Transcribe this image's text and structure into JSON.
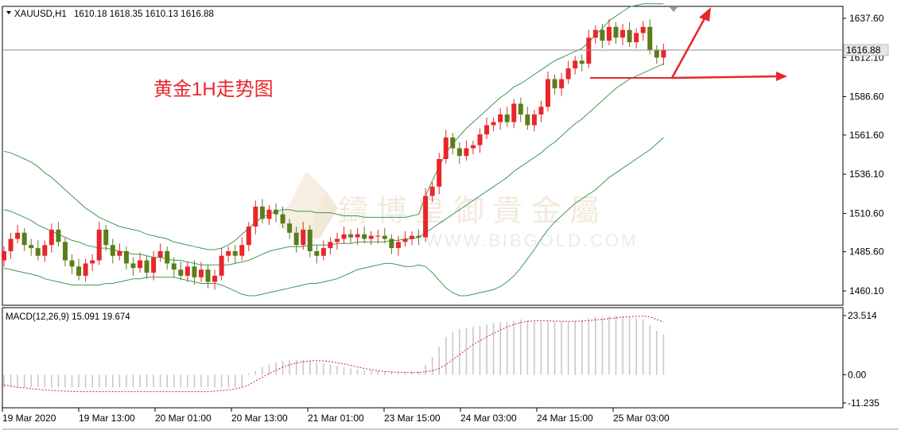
{
  "header": {
    "symbol": "XAUUSD,H1",
    "ohlc": "1610.18 1618.35 1610.13 1616.88"
  },
  "annotation": {
    "title": "黄金1H走势图"
  },
  "watermark": {
    "cn": "鑄 博 皇 御 貴 金 屬",
    "en": "WWW.BIBGOLD.COM"
  },
  "colors": {
    "bull": "#e8262a",
    "bear": "#5a7d1a",
    "band": "#3f9a55",
    "arrow": "#e8262a",
    "macd_signal": "#d0262a",
    "histogram": "#c8c8c8",
    "price_label_bg": "#e6e6e6"
  },
  "chart_data": [
    {
      "type": "candlestick",
      "symbol": "XAUUSD,H1",
      "current_price_label": "1616.88",
      "y_ticks": [
        "1637.60",
        "1612.10",
        "1586.60",
        "1561.60",
        "1536.10",
        "1510.60",
        "1485.60",
        "1460.10"
      ],
      "ylim": [
        1450,
        1648
      ],
      "x_ticks": [
        "19 Mar 2020",
        "19 Mar 13:00",
        "20 Mar 01:00",
        "20 Mar 13:00",
        "21 Mar 01:00",
        "23 Mar 15:00",
        "24 Mar 03:00",
        "24 Mar 15:00",
        "25 Mar 03:00"
      ],
      "closes": [
        1486,
        1494,
        1498,
        1490,
        1488,
        1483,
        1490,
        1500,
        1492,
        1480,
        1476,
        1470,
        1478,
        1480,
        1500,
        1490,
        1483,
        1486,
        1478,
        1475,
        1480,
        1472,
        1482,
        1486,
        1478,
        1474,
        1470,
        1476,
        1469,
        1474,
        1466,
        1470,
        1483,
        1486,
        1483,
        1490,
        1502,
        1515,
        1507,
        1513,
        1510,
        1504,
        1498,
        1490,
        1500,
        1486,
        1483,
        1488,
        1492,
        1494,
        1497,
        1495,
        1497,
        1494,
        1496,
        1496,
        1494,
        1488,
        1492,
        1494,
        1496,
        1495,
        1522,
        1528,
        1546,
        1560,
        1553,
        1548,
        1553,
        1555,
        1562,
        1568,
        1570,
        1575,
        1570,
        1582,
        1575,
        1568,
        1575,
        1580,
        1598,
        1592,
        1598,
        1605,
        1610,
        1608,
        1625,
        1630,
        1623,
        1632,
        1625,
        1630,
        1622,
        1628,
        1632,
        1617,
        1612,
        1617
      ],
      "bollinger_upper": [
        1551,
        1550,
        1548,
        1546,
        1544,
        1541,
        1537,
        1534,
        1530,
        1526,
        1522,
        1518,
        1514,
        1511,
        1508,
        1506,
        1504,
        1502,
        1501,
        1500,
        1499,
        1497,
        1496,
        1495,
        1494,
        1492,
        1491,
        1490,
        1489,
        1488,
        1487,
        1487,
        1488,
        1490,
        1493,
        1497,
        1501,
        1505,
        1508,
        1510,
        1512,
        1513,
        1513,
        1512,
        1512,
        1512,
        1511,
        1511,
        1511,
        1510,
        1509,
        1509,
        1509,
        1508,
        1508,
        1508,
        1508,
        1508,
        1508,
        1508,
        1509,
        1510,
        1522,
        1532,
        1541,
        1550,
        1556,
        1561,
        1566,
        1570,
        1574,
        1578,
        1582,
        1586,
        1589,
        1593,
        1595,
        1598,
        1601,
        1604,
        1607,
        1610,
        1612,
        1614,
        1616,
        1618,
        1622,
        1627,
        1631,
        1636,
        1639,
        1642,
        1645,
        1646,
        1647,
        1647,
        1647,
        1647
      ],
      "bollinger_middle": [
        1513,
        1512,
        1510,
        1508,
        1506,
        1503,
        1501,
        1499,
        1497,
        1495,
        1493,
        1492,
        1490,
        1489,
        1488,
        1488,
        1487,
        1486,
        1485,
        1484,
        1484,
        1483,
        1482,
        1482,
        1481,
        1480,
        1480,
        1479,
        1478,
        1477,
        1477,
        1477,
        1477,
        1477,
        1478,
        1479,
        1480,
        1482,
        1484,
        1486,
        1487,
        1488,
        1489,
        1489,
        1489,
        1490,
        1490,
        1490,
        1490,
        1491,
        1491,
        1491,
        1492,
        1492,
        1492,
        1492,
        1492,
        1493,
        1493,
        1494,
        1494,
        1495,
        1498,
        1501,
        1504,
        1507,
        1510,
        1513,
        1516,
        1519,
        1522,
        1525,
        1528,
        1531,
        1534,
        1538,
        1541,
        1544,
        1547,
        1550,
        1554,
        1557,
        1561,
        1565,
        1569,
        1572,
        1576,
        1580,
        1584,
        1588,
        1592,
        1595,
        1598,
        1600,
        1602,
        1604,
        1606,
        1608
      ],
      "bollinger_lower": [
        1475,
        1474,
        1473,
        1472,
        1471,
        1470,
        1468,
        1467,
        1466,
        1465,
        1464,
        1464,
        1464,
        1464,
        1464,
        1465,
        1465,
        1466,
        1467,
        1468,
        1468,
        1469,
        1469,
        1469,
        1469,
        1469,
        1468,
        1467,
        1466,
        1465,
        1465,
        1465,
        1464,
        1462,
        1460,
        1458,
        1457,
        1457,
        1458,
        1459,
        1460,
        1461,
        1462,
        1463,
        1464,
        1465,
        1465,
        1466,
        1467,
        1468,
        1470,
        1472,
        1474,
        1475,
        1476,
        1477,
        1478,
        1478,
        1477,
        1476,
        1476,
        1477,
        1476,
        1472,
        1467,
        1462,
        1459,
        1457,
        1457,
        1458,
        1459,
        1460,
        1461,
        1463,
        1466,
        1470,
        1475,
        1481,
        1487,
        1494,
        1500,
        1505,
        1509,
        1513,
        1517,
        1520,
        1523,
        1526,
        1530,
        1534,
        1537,
        1540,
        1543,
        1546,
        1549,
        1552,
        1556,
        1560
      ]
    },
    {
      "type": "macd",
      "label": "MACD(12,26,9) 15.091 19.674",
      "y_ticks": [
        "23.514",
        "0.00",
        "-11.235"
      ],
      "ylim": [
        -11.235,
        23.514
      ],
      "histogram": [
        -5,
        -5,
        -5,
        -5,
        -5,
        -5,
        -5,
        -5,
        -5,
        -5,
        -5,
        -5,
        -5,
        -5,
        -5,
        -5,
        -5,
        -5,
        -5,
        -5,
        -5,
        -5,
        -5,
        -5,
        -5,
        -5,
        -5,
        -5,
        -5,
        -5,
        -5,
        -5,
        -5,
        -5,
        -5,
        -5,
        0.5,
        1.5,
        3,
        4,
        5,
        5.5,
        6,
        6,
        5.8,
        5.5,
        5,
        4.5,
        4,
        3.5,
        3,
        2.5,
        2,
        1.8,
        1.6,
        1.5,
        1.4,
        1.3,
        1.2,
        1.2,
        1.3,
        1.5,
        4,
        7,
        11,
        15,
        17,
        18,
        18.5,
        19,
        19.5,
        20,
        20.5,
        21,
        21,
        21.5,
        22,
        21.5,
        21,
        21,
        21.5,
        21,
        21,
        21,
        21.5,
        22,
        22.5,
        23,
        23,
        23.3,
        23.5,
        23.3,
        23,
        22.5,
        22,
        19.5,
        17.5,
        16
      ],
      "signal": [
        -4,
        -4.5,
        -5,
        -5.2,
        -5.5,
        -5.8,
        -6,
        -6.2,
        -6.4,
        -6.5,
        -6.6,
        -6.7,
        -6.7,
        -6.7,
        -6.7,
        -6.7,
        -6.7,
        -6.7,
        -6.7,
        -6.7,
        -6.7,
        -6.7,
        -6.7,
        -6.7,
        -6.7,
        -6.7,
        -6.7,
        -6.7,
        -6.7,
        -6.7,
        -6.7,
        -6.5,
        -6.3,
        -6,
        -5.6,
        -5,
        -4,
        -2.5,
        -1,
        0.5,
        1.8,
        3,
        4,
        4.7,
        5.2,
        5.5,
        5.6,
        5.5,
        5.2,
        4.8,
        4.3,
        3.7,
        3.1,
        2.5,
        2,
        1.6,
        1.3,
        1.1,
        1,
        0.9,
        0.9,
        0.9,
        1.2,
        1.6,
        2.5,
        4,
        6,
        8,
        10,
        12,
        13.5,
        15,
        16.5,
        17.8,
        19,
        20,
        20.7,
        21.2,
        21.4,
        21.5,
        21.4,
        21.3,
        21.2,
        21.2,
        21.2,
        21.3,
        21.5,
        21.8,
        22,
        22.3,
        22.6,
        22.9,
        23.1,
        23.2,
        23.3,
        23,
        22,
        21
      ]
    }
  ]
}
